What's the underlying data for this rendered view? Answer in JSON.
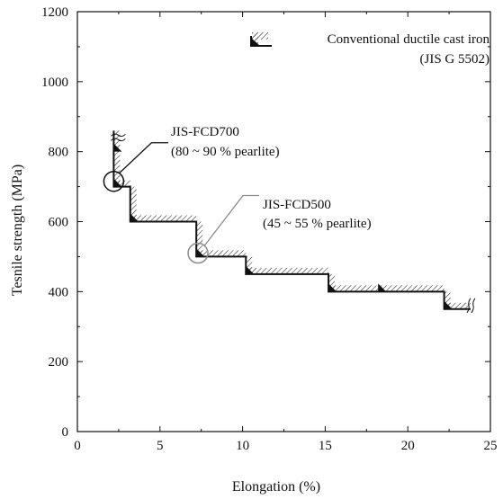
{
  "chart_data": {
    "type": "line",
    "xlabel": "Elongation (%)",
    "ylabel": "Tesnile strength (MPa)",
    "xlim": [
      0,
      25
    ],
    "ylim": [
      0,
      1200
    ],
    "x_ticks": [
      "0",
      "5",
      "10",
      "15",
      "20",
      "25"
    ],
    "y_ticks": [
      "0",
      "200",
      "400",
      "600",
      "800",
      "1000",
      "1200"
    ],
    "grid": false,
    "legend": {
      "placement": "top-right",
      "line1": "Conventional ductile cast iron",
      "line2": "(JIS G 5502)"
    },
    "series": [
      {
        "name": "Conventional ductile cast iron (JIS G 5502)",
        "points": [
          [
            2.2,
            860
          ],
          [
            2.2,
            700
          ],
          [
            3.2,
            700
          ],
          [
            3.2,
            600
          ],
          [
            7.2,
            600
          ],
          [
            7.2,
            500
          ],
          [
            10.2,
            500
          ],
          [
            10.2,
            450
          ],
          [
            15.2,
            450
          ],
          [
            15.2,
            400
          ],
          [
            22.2,
            400
          ],
          [
            22.2,
            350
          ],
          [
            23.8,
            350
          ]
        ]
      }
    ],
    "grade_markers": [
      [
        2.2,
        800
      ],
      [
        2.2,
        700
      ],
      [
        3.2,
        600
      ],
      [
        7.2,
        500
      ],
      [
        10.2,
        450
      ],
      [
        15.2,
        400
      ],
      [
        18.2,
        400
      ],
      [
        22.2,
        350
      ]
    ],
    "annotations": [
      {
        "grade": "JIS-FCD700",
        "detail": "(80 ~ 90 % pearlite)",
        "circle_at": [
          2.2,
          715
        ],
        "color": "#111111"
      },
      {
        "grade": "JIS-FCD500",
        "detail": "(45 ~ 55 % pearlite)",
        "circle_at": [
          7.3,
          510
        ],
        "color": "#8a8a8a"
      }
    ]
  }
}
